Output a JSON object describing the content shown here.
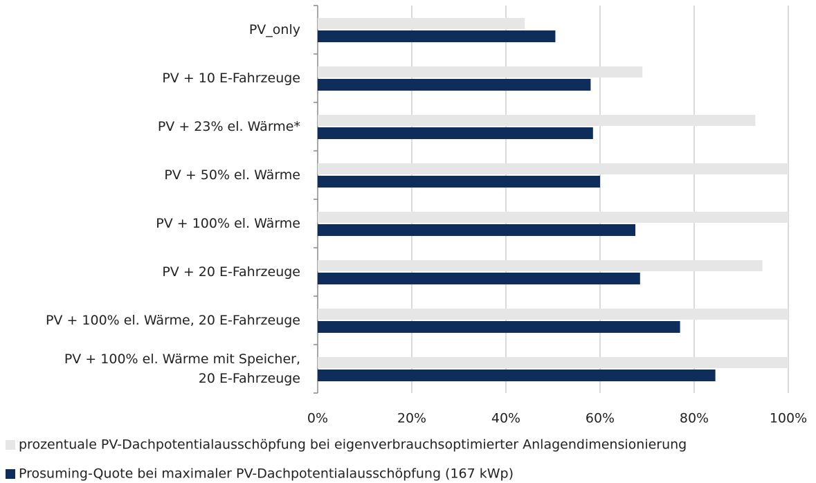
{
  "chart_data": {
    "type": "hbar",
    "categories": [
      "PV_only",
      "PV + 10 E-Fahrzeuge",
      "PV + 23% el. Wärme*",
      "PV + 50% el. Wärme",
      "PV + 100% el. Wärme",
      "PV + 20 E-Fahrzeuge",
      "PV + 100% el. Wärme, 20 E-Fahrzeuge",
      "PV + 100% el. Wärme mit Speicher,\n20 E-Fahrzeuge"
    ],
    "series": [
      {
        "name": "prozentuale PV-Dachpotentialausschöpfung bei eigenverbrauchsoptimierter Anlagendimensionierung",
        "color": "#e6e6e6",
        "values": [
          44,
          69,
          93,
          100,
          100,
          94.5,
          100,
          100
        ]
      },
      {
        "name": "Prosuming-Quote bei maximaler PV-Dachpotentialausschöpfung (167 kWp)",
        "color": "#0e2d5a",
        "values": [
          50.5,
          58,
          58.5,
          60,
          67.5,
          68.5,
          77,
          84.5
        ]
      }
    ],
    "xlim": [
      0,
      100
    ],
    "xticks": [
      {
        "value": 0,
        "label": "0%"
      },
      {
        "value": 20,
        "label": "20%"
      },
      {
        "value": 40,
        "label": "40%"
      },
      {
        "value": 60,
        "label": "60%"
      },
      {
        "value": 80,
        "label": "80%"
      },
      {
        "value": 100,
        "label": "100%"
      }
    ],
    "grid": true,
    "legend": "bottom"
  }
}
